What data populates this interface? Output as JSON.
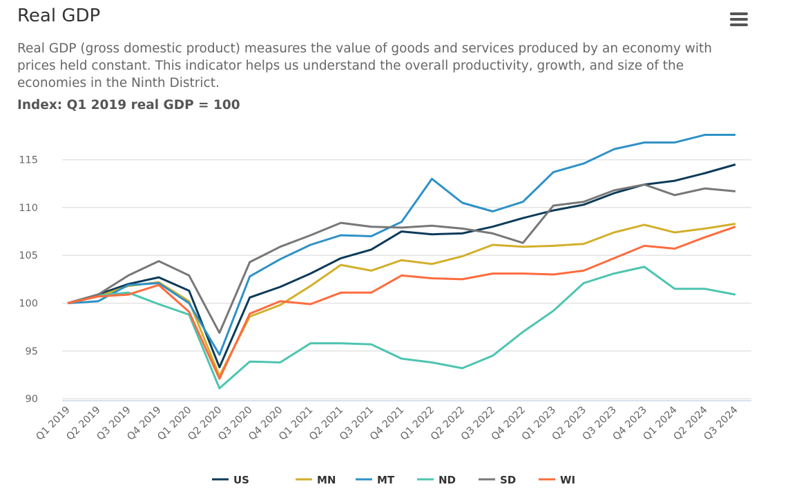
{
  "header": {
    "title": "Real GDP",
    "description": "Real GDP (gross domestic product) measures the value of goods and services produced by an economy with prices held constant. This indicator helps us understand the overall productivity, growth, and size of the economies in the Ninth District.",
    "index_label": "Index: Q1 2019 real GDP = 100",
    "menu_icon": "hamburger-menu-icon"
  },
  "chart_data": {
    "type": "line",
    "title": "",
    "xlabel": "",
    "ylabel": "",
    "ylim": [
      89.8,
      118
    ],
    "yticks": [
      90,
      95,
      100,
      105,
      110,
      115
    ],
    "grid": true,
    "legend_placement": "bottom",
    "categories": [
      "Q1 2019",
      "Q2 2019",
      "Q3 2019",
      "Q4 2019",
      "Q1 2020",
      "Q2 2020",
      "Q3 2020",
      "Q4 2020",
      "Q1 2021",
      "Q2 2021",
      "Q3 2021",
      "Q4 2021",
      "Q1 2022",
      "Q2 2022",
      "Q3 2022",
      "Q4 2022",
      "Q1 2023",
      "Q2 2023",
      "Q3 2023",
      "Q4 2023",
      "Q1 2024",
      "Q2 2024",
      "Q3 2024"
    ],
    "series": [
      {
        "name": "US",
        "color": "#0b3a58",
        "values": [
          100,
          100.9,
          102.0,
          102.7,
          101.3,
          93.3,
          100.6,
          101.7,
          103.1,
          104.7,
          105.6,
          107.5,
          107.2,
          107.3,
          108.0,
          108.9,
          109.7,
          110.3,
          111.5,
          112.4,
          112.8,
          113.6,
          114.5
        ]
      },
      {
        "name": "MN",
        "color": "#d2af2a",
        "values": [
          100,
          100.7,
          101.8,
          102.2,
          100.2,
          92.4,
          98.6,
          99.8,
          101.8,
          104.0,
          103.4,
          104.5,
          104.1,
          104.9,
          106.1,
          105.9,
          106.0,
          106.2,
          107.4,
          108.2,
          107.4,
          107.8,
          108.3
        ]
      },
      {
        "name": "MT",
        "color": "#2e91c7",
        "values": [
          100,
          100.2,
          101.9,
          102.1,
          100.0,
          94.6,
          102.8,
          104.6,
          106.1,
          107.1,
          107.0,
          108.5,
          113.0,
          110.5,
          109.6,
          110.6,
          113.7,
          114.6,
          116.1,
          116.8,
          116.8,
          117.6,
          117.6
        ]
      },
      {
        "name": "ND",
        "color": "#4cc4b0",
        "values": [
          100,
          100.8,
          101.1,
          99.9,
          98.8,
          91.1,
          93.9,
          93.8,
          95.8,
          95.8,
          95.7,
          94.2,
          93.8,
          93.2,
          94.5,
          97.0,
          99.2,
          102.1,
          103.1,
          103.8,
          101.5,
          101.5,
          100.9
        ]
      },
      {
        "name": "SD",
        "color": "#777777",
        "values": [
          100,
          100.9,
          102.9,
          104.4,
          102.9,
          96.9,
          104.3,
          105.9,
          107.1,
          108.4,
          108.0,
          107.9,
          108.1,
          107.8,
          107.3,
          106.3,
          110.2,
          110.6,
          111.8,
          112.4,
          111.3,
          112.0,
          111.7
        ]
      },
      {
        "name": "WI",
        "color": "#ff6b3d",
        "values": [
          100,
          100.7,
          100.9,
          101.9,
          99.1,
          92.1,
          98.9,
          100.2,
          99.9,
          101.1,
          101.1,
          102.9,
          102.6,
          102.5,
          103.1,
          103.1,
          103.0,
          103.4,
          104.7,
          106.0,
          105.7,
          106.9,
          108.0
        ]
      }
    ]
  }
}
